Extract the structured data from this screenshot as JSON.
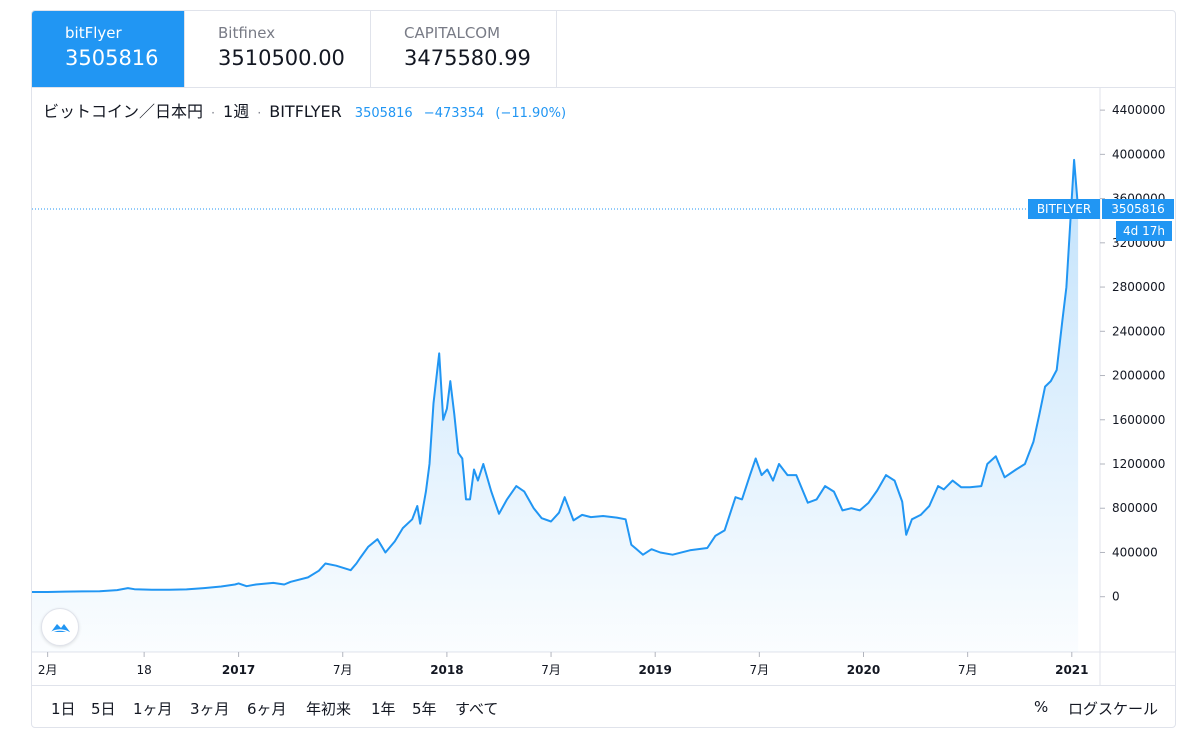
{
  "tabs": [
    {
      "name": "bitFlyer",
      "price": "3505816",
      "active": true
    },
    {
      "name": "Bitfinex",
      "price": "3510500.00",
      "active": false
    },
    {
      "name": "CAPITALCOM",
      "price": "3475580.99",
      "active": false
    }
  ],
  "legend": {
    "symbol": "ビットコイン／日本円",
    "interval": "1週",
    "exchange": "BITFLYER",
    "last": "3505816",
    "change": "−473354",
    "change_pct": "(−11.90%)",
    "separator": "·"
  },
  "price_label": {
    "tag": "BITFLYER",
    "value": "3505816",
    "countdown": "4d 17h"
  },
  "colors": {
    "accent": "#2196f3",
    "line": "#2196f3",
    "grid": "#e0e3eb",
    "text": "#131722",
    "muted": "#787b86"
  },
  "range_buttons": [
    "1日",
    "5日",
    "1ヶ月",
    "3ヶ月",
    "6ヶ月",
    "年初来",
    "1年",
    "5年",
    "すべて"
  ],
  "right_buttons": {
    "percent": "%",
    "log": "ログスケール"
  },
  "logo_icon": "cloud-logo-icon",
  "chart_data": {
    "type": "area",
    "title": "",
    "xlabel": "",
    "ylabel": "",
    "x_start": "2016-02",
    "x_end": "2021-01",
    "ylim": [
      -500000,
      4600000
    ],
    "y_ticks": [
      0,
      400000,
      800000,
      1200000,
      1600000,
      2000000,
      2400000,
      2800000,
      3200000,
      3600000,
      4000000,
      4400000
    ],
    "y_tick_labels": [
      "0",
      "400000",
      "800000",
      "1200000",
      "1600000",
      "2000000",
      "2400000",
      "2800000",
      "3200000",
      "3600000",
      "4000000",
      "4400000"
    ],
    "x_ticks": [
      {
        "label": "2月",
        "date": "2016-02"
      },
      {
        "label": "18",
        "date": "2016-07-18"
      },
      {
        "label": "2017",
        "date": "2017-01"
      },
      {
        "label": "7月",
        "date": "2017-07"
      },
      {
        "label": "2018",
        "date": "2018-01"
      },
      {
        "label": "7月",
        "date": "2018-07"
      },
      {
        "label": "2019",
        "date": "2019-01"
      },
      {
        "label": "7月",
        "date": "2019-07"
      },
      {
        "label": "2020",
        "date": "2020-01"
      },
      {
        "label": "7月",
        "date": "2020-07"
      },
      {
        "label": "2021",
        "date": "2021-01"
      }
    ],
    "current_price": 3505816,
    "grid": false,
    "series": [
      {
        "points": [
          [
            "2016-02",
            43000
          ],
          [
            "2016-03",
            46000
          ],
          [
            "2016-04",
            48000
          ],
          [
            "2016-05",
            50000
          ],
          [
            "2016-06",
            60000
          ],
          [
            "2016-06-20",
            78000
          ],
          [
            "2016-07",
            68000
          ],
          [
            "2016-08",
            62000
          ],
          [
            "2016-09",
            62000
          ],
          [
            "2016-10",
            66000
          ],
          [
            "2016-11",
            78000
          ],
          [
            "2016-12",
            92000
          ],
          [
            "2016-12-25",
            110000
          ],
          [
            "2017-01",
            120000
          ],
          [
            "2017-01-15",
            95000
          ],
          [
            "2017-02",
            110000
          ],
          [
            "2017-03",
            125000
          ],
          [
            "2017-03-20",
            110000
          ],
          [
            "2017-04",
            135000
          ],
          [
            "2017-05",
            175000
          ],
          [
            "2017-05-20",
            235000
          ],
          [
            "2017-06",
            300000
          ],
          [
            "2017-06-20",
            280000
          ],
          [
            "2017-07-15",
            240000
          ],
          [
            "2017-07-25",
            300000
          ],
          [
            "2017-08",
            350000
          ],
          [
            "2017-08-15",
            450000
          ],
          [
            "2017-09",
            520000
          ],
          [
            "2017-09-15",
            400000
          ],
          [
            "2017-10",
            500000
          ],
          [
            "2017-10-15",
            620000
          ],
          [
            "2017-11",
            700000
          ],
          [
            "2017-11-10",
            820000
          ],
          [
            "2017-11-15",
            660000
          ],
          [
            "2017-11-25",
            950000
          ],
          [
            "2017-12-01",
            1200000
          ],
          [
            "2017-12-08",
            1750000
          ],
          [
            "2017-12-18",
            2200000
          ],
          [
            "2017-12-25",
            1600000
          ],
          [
            "2018-01-01",
            1700000
          ],
          [
            "2018-01-07",
            1950000
          ],
          [
            "2018-01-14",
            1650000
          ],
          [
            "2018-01-21",
            1300000
          ],
          [
            "2018-01-28",
            1250000
          ],
          [
            "2018-02-04",
            880000
          ],
          [
            "2018-02-11",
            880000
          ],
          [
            "2018-02-18",
            1150000
          ],
          [
            "2018-02-25",
            1050000
          ],
          [
            "2018-03-04",
            1200000
          ],
          [
            "2018-03-18",
            950000
          ],
          [
            "2018-04-01",
            750000
          ],
          [
            "2018-04-15",
            880000
          ],
          [
            "2018-05-01",
            1000000
          ],
          [
            "2018-05-15",
            950000
          ],
          [
            "2018-06-01",
            800000
          ],
          [
            "2018-06-15",
            710000
          ],
          [
            "2018-07-01",
            680000
          ],
          [
            "2018-07-15",
            760000
          ],
          [
            "2018-07-25",
            900000
          ],
          [
            "2018-08-10",
            690000
          ],
          [
            "2018-08-25",
            740000
          ],
          [
            "2018-09-10",
            720000
          ],
          [
            "2018-10-01",
            730000
          ],
          [
            "2018-10-25",
            715000
          ],
          [
            "2018-11-10",
            700000
          ],
          [
            "2018-11-20",
            470000
          ],
          [
            "2018-12-10",
            380000
          ],
          [
            "2018-12-25",
            430000
          ],
          [
            "2019-01-10",
            400000
          ],
          [
            "2019-02-01",
            380000
          ],
          [
            "2019-03-01",
            420000
          ],
          [
            "2019-04-01",
            440000
          ],
          [
            "2019-04-15",
            550000
          ],
          [
            "2019-05-01",
            600000
          ],
          [
            "2019-05-20",
            900000
          ],
          [
            "2019-06-01",
            880000
          ],
          [
            "2019-06-15",
            1100000
          ],
          [
            "2019-06-25",
            1250000
          ],
          [
            "2019-07-05",
            1100000
          ],
          [
            "2019-07-15",
            1150000
          ],
          [
            "2019-07-25",
            1050000
          ],
          [
            "2019-08-05",
            1200000
          ],
          [
            "2019-08-20",
            1100000
          ],
          [
            "2019-09-05",
            1100000
          ],
          [
            "2019-09-25",
            850000
          ],
          [
            "2019-10-10",
            880000
          ],
          [
            "2019-10-25",
            1000000
          ],
          [
            "2019-11-10",
            950000
          ],
          [
            "2019-11-25",
            780000
          ],
          [
            "2019-12-10",
            800000
          ],
          [
            "2019-12-25",
            780000
          ],
          [
            "2020-01-10",
            850000
          ],
          [
            "2020-01-25",
            960000
          ],
          [
            "2020-02-10",
            1100000
          ],
          [
            "2020-02-25",
            1050000
          ],
          [
            "2020-03-08",
            860000
          ],
          [
            "2020-03-15",
            560000
          ],
          [
            "2020-03-25",
            700000
          ],
          [
            "2020-04-10",
            740000
          ],
          [
            "2020-04-25",
            820000
          ],
          [
            "2020-05-10",
            1000000
          ],
          [
            "2020-05-20",
            970000
          ],
          [
            "2020-06-05",
            1050000
          ],
          [
            "2020-06-20",
            990000
          ],
          [
            "2020-07-05",
            990000
          ],
          [
            "2020-07-25",
            1000000
          ],
          [
            "2020-08-05",
            1200000
          ],
          [
            "2020-08-20",
            1270000
          ],
          [
            "2020-09-05",
            1080000
          ],
          [
            "2020-09-25",
            1150000
          ],
          [
            "2020-10-10",
            1200000
          ],
          [
            "2020-10-25",
            1400000
          ],
          [
            "2020-11-05",
            1650000
          ],
          [
            "2020-11-15",
            1900000
          ],
          [
            "2020-11-25",
            1950000
          ],
          [
            "2020-12-05",
            2050000
          ],
          [
            "2020-12-15",
            2500000
          ],
          [
            "2020-12-22",
            2800000
          ],
          [
            "2020-12-29",
            3400000
          ],
          [
            "2021-01-05",
            3950000
          ],
          [
            "2021-01-12",
            3505816
          ]
        ]
      }
    ]
  }
}
